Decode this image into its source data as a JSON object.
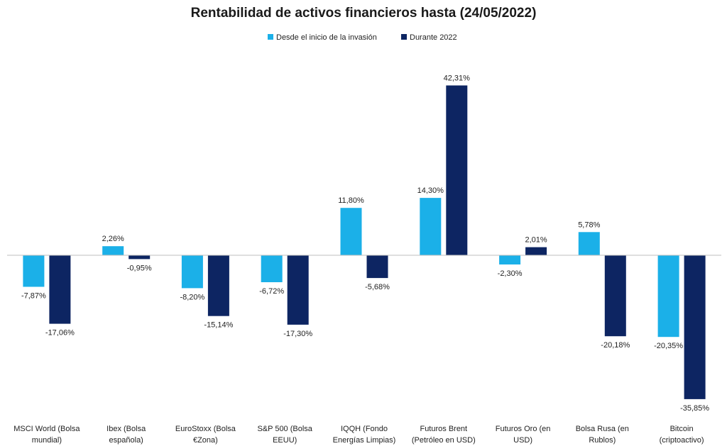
{
  "chart_data": {
    "type": "bar",
    "title": "Rentabilidad de activos financieros hasta (24/05/2022)",
    "xlabel": "",
    "ylabel": "",
    "ylim": [
      -40,
      46
    ],
    "grid": false,
    "legend_position": "top-center",
    "categories": [
      [
        "MSCI World (Bolsa",
        "mundial)"
      ],
      [
        "Ibex (Bolsa",
        "española)"
      ],
      [
        "EuroStoxx (Bolsa",
        "€Zona)"
      ],
      [
        "S&P 500 (Bolsa",
        "EEUU)"
      ],
      [
        "IQQH (Fondo",
        "Energías Limpias)"
      ],
      [
        "Futuros Brent",
        "(Petróleo en USD)"
      ],
      [
        "Futuros Oro (en",
        "USD)"
      ],
      [
        "Bolsa Rusa (en",
        "Rublos)"
      ],
      [
        "Bitcoin",
        "(criptoactivo)"
      ]
    ],
    "series": [
      {
        "name": "Desde el inicio de la invasión",
        "color": "#1bb0e8",
        "values": [
          -7.87,
          2.26,
          -8.2,
          -6.72,
          11.8,
          14.3,
          -2.3,
          5.78,
          -20.35
        ],
        "labels": [
          "-7,87%",
          "2,26%",
          "-8,20%",
          "-6,72%",
          "11,80%",
          "14,30%",
          "-2,30%",
          "5,78%",
          "-20,35%"
        ]
      },
      {
        "name": "Durante 2022",
        "color": "#0d2562",
        "values": [
          -17.06,
          -0.95,
          -15.14,
          -17.3,
          -5.68,
          42.31,
          2.01,
          -20.18,
          -35.85
        ],
        "labels": [
          "-17,06%",
          "-0,95%",
          "-15,14%",
          "-17,30%",
          "-5,68%",
          "42,31%",
          "2,01%",
          "-20,18%",
          "-35,85%"
        ]
      }
    ]
  }
}
